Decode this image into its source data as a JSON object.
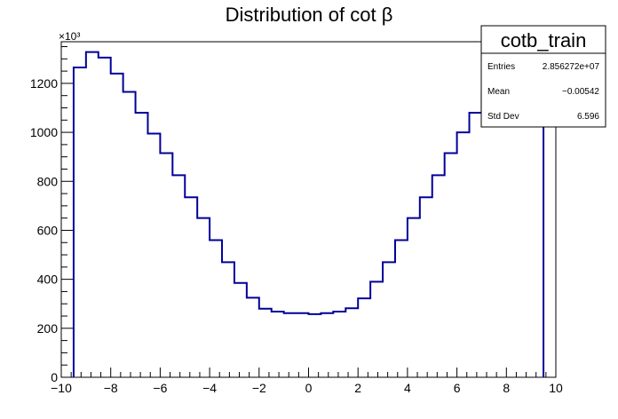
{
  "chart_data": {
    "type": "histogram",
    "title": "Distribution of cot β",
    "xlabel": "",
    "ylabel": "",
    "xlim": [
      -10,
      10
    ],
    "ylim": [
      0,
      1370
    ],
    "y_multiplier_label": "×10³",
    "x_ticks": [
      -10,
      -8,
      -6,
      -4,
      -2,
      0,
      2,
      4,
      6,
      8,
      10
    ],
    "x_tick_labels": [
      "−10",
      "−8",
      "−6",
      "−4",
      "−2",
      "0",
      "2",
      "4",
      "6",
      "8",
      "10"
    ],
    "y_ticks": [
      0,
      200,
      400,
      600,
      800,
      1000,
      1200
    ],
    "y_tick_labels": [
      "0",
      "200",
      "400",
      "600",
      "800",
      "1000",
      "1200"
    ],
    "bin_edges": [
      -9.5,
      -9.0,
      -8.5,
      -8.0,
      -7.5,
      -7.0,
      -6.5,
      -6.0,
      -5.5,
      -5.0,
      -4.5,
      -4.0,
      -3.5,
      -3.0,
      -2.5,
      -2.0,
      -1.5,
      -1.0,
      -0.5,
      0.0,
      0.5,
      1.0,
      1.5,
      2.0,
      2.5,
      3.0,
      3.5,
      4.0,
      4.5,
      5.0,
      5.5,
      6.0,
      6.5,
      7.0,
      7.5,
      8.0,
      8.5,
      9.0,
      9.5
    ],
    "bin_values": [
      1265,
      1328,
      1305,
      1240,
      1165,
      1080,
      995,
      915,
      825,
      735,
      650,
      560,
      470,
      385,
      325,
      280,
      268,
      262,
      262,
      258,
      262,
      268,
      282,
      322,
      390,
      470,
      560,
      650,
      735,
      825,
      915,
      1000,
      1080,
      1165,
      1240,
      1305,
      1328,
      1265
    ],
    "grid": false,
    "line_color": "#000099",
    "legend": {
      "title": "cotb_train",
      "entries": [
        {
          "label": "Entries",
          "value": "2.856272e+07"
        },
        {
          "label": "Mean",
          "value": "−0.00542"
        },
        {
          "label": "Std Dev",
          "value": "6.596"
        }
      ]
    }
  }
}
